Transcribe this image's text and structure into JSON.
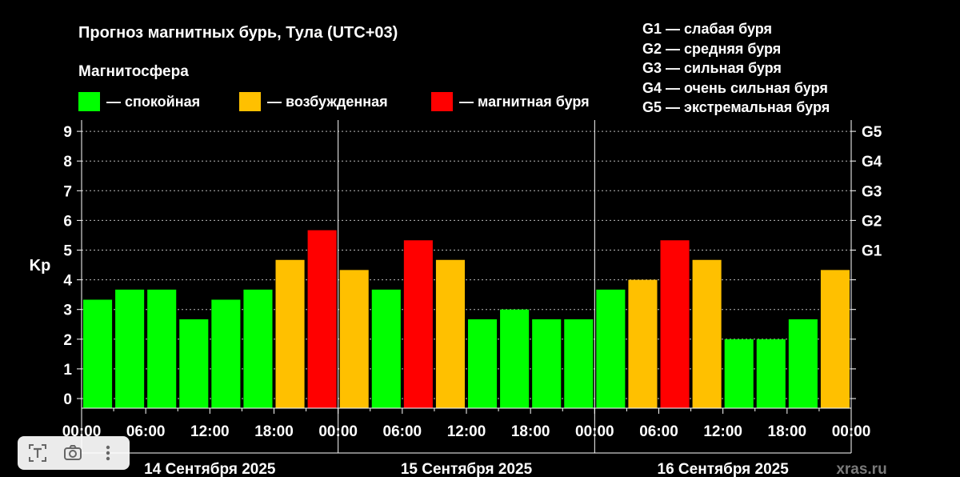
{
  "header": {
    "title": "Прогноз магнитных бурь, Тула (UTC+03)",
    "magnetosphere_label": "Магнитосфера"
  },
  "legend": [
    {
      "label": "— спокойная",
      "color": "#00ff00"
    },
    {
      "label": "— возбужденная",
      "color": "#ffc000"
    },
    {
      "label": "— магнитная буря",
      "color": "#ff0000"
    }
  ],
  "g_legend": [
    "G1 — слабая буря",
    "G2 — средняя буря",
    "G3 — сильная буря",
    "G4 — очень сильная буря",
    "G5 — экстремальная буря"
  ],
  "watermark": "xras.ru",
  "toolbar": {
    "icons": [
      "text-recognition-icon",
      "camera-icon",
      "more-icon"
    ]
  },
  "chart_data": {
    "type": "bar",
    "ylabel": "Kp",
    "ylim": [
      0,
      9
    ],
    "yticks": [
      "0",
      "1",
      "2",
      "3",
      "4",
      "5",
      "6",
      "7",
      "8",
      "9"
    ],
    "right_ticks": [
      {
        "value": 5,
        "label": "G1"
      },
      {
        "value": 6,
        "label": "G2"
      },
      {
        "value": 7,
        "label": "G3"
      },
      {
        "value": 8,
        "label": "G4"
      },
      {
        "value": 9,
        "label": "G5"
      }
    ],
    "grid": "horizontal dashed",
    "colors": {
      "calm": "#00ff00",
      "active": "#ffc000",
      "storm": "#ff0000"
    },
    "xtick_labels": [
      "00:00",
      "06:00",
      "12:00",
      "18:00",
      "00:00",
      "06:00",
      "12:00",
      "18:00",
      "00:00",
      "06:00",
      "12:00",
      "18:00",
      "00:00"
    ],
    "days": [
      {
        "label": "14 Сентября 2025",
        "values": [
          3.33,
          3.67,
          3.67,
          2.67,
          3.33,
          3.67,
          4.67,
          5.67
        ],
        "levels": [
          "calm",
          "calm",
          "calm",
          "calm",
          "calm",
          "calm",
          "active",
          "storm"
        ]
      },
      {
        "label": "15 Сентября 2025",
        "values": [
          4.33,
          3.67,
          5.33,
          4.67,
          2.67,
          3.0,
          2.67,
          2.67
        ],
        "levels": [
          "active",
          "calm",
          "storm",
          "active",
          "calm",
          "calm",
          "calm",
          "calm"
        ]
      },
      {
        "label": "16 Сентября 2025",
        "values": [
          3.67,
          4.0,
          5.33,
          4.67,
          2.0,
          2.0,
          2.67,
          4.33
        ],
        "levels": [
          "calm",
          "active",
          "storm",
          "active",
          "calm",
          "calm",
          "calm",
          "active"
        ]
      }
    ]
  }
}
